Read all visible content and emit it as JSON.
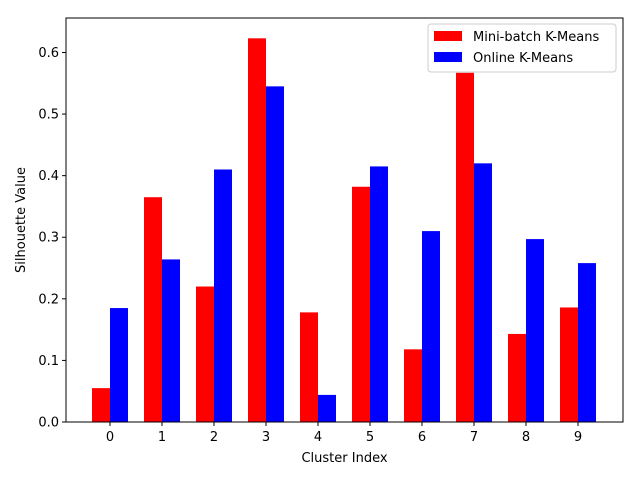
{
  "chart_data": {
    "type": "bar",
    "title": "",
    "xlabel": "Cluster Index",
    "ylabel": "Silhouette Value",
    "categories": [
      "0",
      "1",
      "2",
      "3",
      "4",
      "5",
      "6",
      "7",
      "8",
      "9"
    ],
    "ylim": [
      0,
      0.656
    ],
    "yticks": [
      "0.0",
      "0.1",
      "0.2",
      "0.3",
      "0.4",
      "0.5",
      "0.6"
    ],
    "grid": false,
    "legend_position": "top-right",
    "series": [
      {
        "name": "Mini-batch K-Means",
        "color": "#ff0000",
        "values": [
          0.055,
          0.365,
          0.22,
          0.623,
          0.178,
          0.382,
          0.118,
          0.567,
          0.143,
          0.186
        ]
      },
      {
        "name": "Online K-Means",
        "color": "#0000ff",
        "values": [
          0.185,
          0.264,
          0.41,
          0.545,
          0.044,
          0.415,
          0.31,
          0.42,
          0.297,
          0.258
        ]
      }
    ]
  }
}
